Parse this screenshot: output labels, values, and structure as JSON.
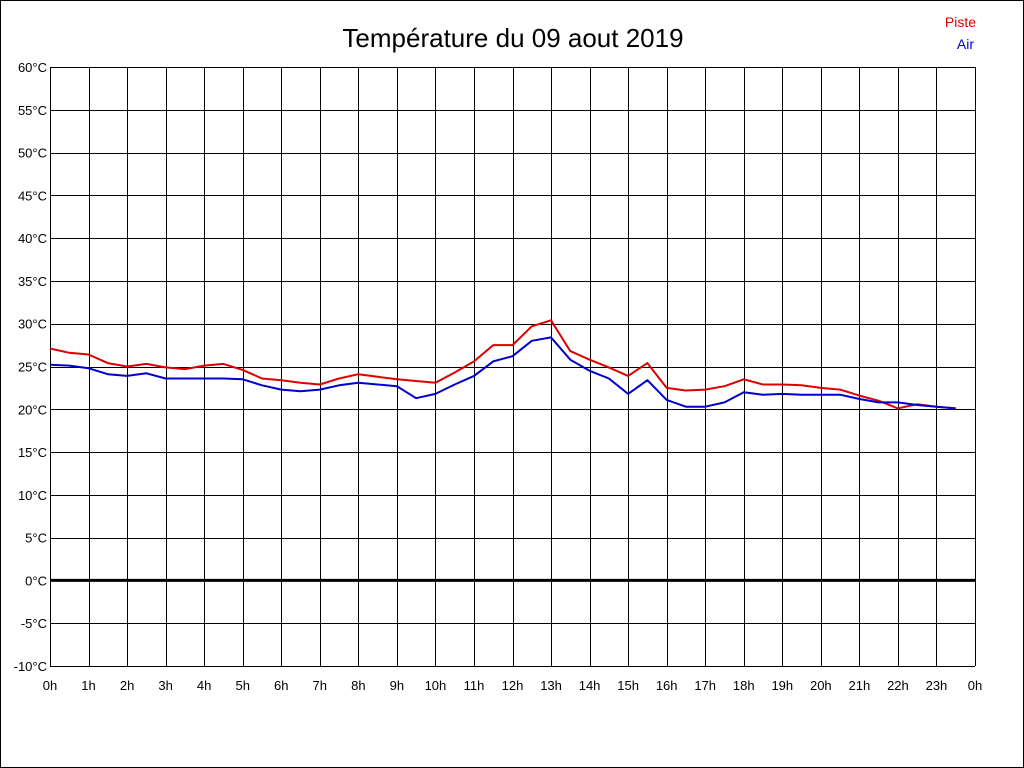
{
  "chart_data": {
    "type": "line",
    "title": "Température du 09 aout 2019",
    "xlabel": "",
    "ylabel": "",
    "grid": true,
    "legend_position": "top-right",
    "x_ticks": [
      "0h",
      "1h",
      "2h",
      "3h",
      "4h",
      "5h",
      "6h",
      "7h",
      "8h",
      "9h",
      "10h",
      "11h",
      "12h",
      "13h",
      "14h",
      "15h",
      "16h",
      "17h",
      "18h",
      "19h",
      "20h",
      "21h",
      "22h",
      "23h",
      "0h"
    ],
    "y_ticks": [
      "60°C",
      "55°C",
      "50°C",
      "45°C",
      "40°C",
      "35°C",
      "30°C",
      "25°C",
      "20°C",
      "15°C",
      "10°C",
      "5°C",
      "0°C",
      "-5°C",
      "-10°C"
    ],
    "xlim": [
      0,
      24
    ],
    "ylim": [
      -10,
      60
    ],
    "zero_line": 0,
    "x": [
      0,
      0.5,
      1,
      1.5,
      2,
      2.5,
      3,
      3.5,
      4,
      4.5,
      5,
      5.5,
      6,
      6.5,
      7,
      7.5,
      8,
      8.5,
      9,
      9.5,
      10,
      10.5,
      11,
      11.5,
      12,
      12.5,
      13,
      13.5,
      14,
      14.5,
      15,
      15.5,
      16,
      16.5,
      17,
      17.5,
      18,
      18.5,
      19,
      19.5,
      20,
      20.5,
      21,
      21.5,
      22,
      22.5,
      23,
      23.5
    ],
    "series": [
      {
        "name": "Piste",
        "color": "#dd0000",
        "values": [
          27.1,
          26.6,
          26.4,
          25.4,
          25.0,
          25.3,
          24.9,
          24.7,
          25.1,
          25.3,
          24.6,
          23.6,
          23.4,
          23.1,
          22.9,
          23.6,
          24.1,
          23.8,
          23.5,
          23.3,
          23.1,
          24.3,
          25.6,
          27.5,
          27.5,
          29.7,
          30.4,
          26.8,
          25.8,
          24.9,
          23.9,
          25.4,
          22.5,
          22.2,
          22.3,
          22.7,
          23.5,
          22.9,
          22.9,
          22.8,
          22.5,
          22.3,
          21.6,
          21.0,
          20.1,
          20.6,
          20.3,
          20.1
        ]
      },
      {
        "name": "Air",
        "color": "#0000cc",
        "values": [
          25.2,
          25.1,
          24.8,
          24.1,
          23.9,
          24.2,
          23.6,
          23.6,
          23.6,
          23.6,
          23.5,
          22.8,
          22.3,
          22.1,
          22.3,
          22.8,
          23.1,
          22.9,
          22.7,
          21.3,
          21.8,
          22.9,
          23.9,
          25.6,
          26.2,
          28.0,
          28.4,
          25.8,
          24.5,
          23.6,
          21.8,
          23.4,
          21.1,
          20.3,
          20.3,
          20.8,
          22.0,
          21.7,
          21.8,
          21.7,
          21.7,
          21.7,
          21.2,
          20.8,
          20.8,
          20.5,
          20.3,
          20.1
        ]
      }
    ]
  }
}
